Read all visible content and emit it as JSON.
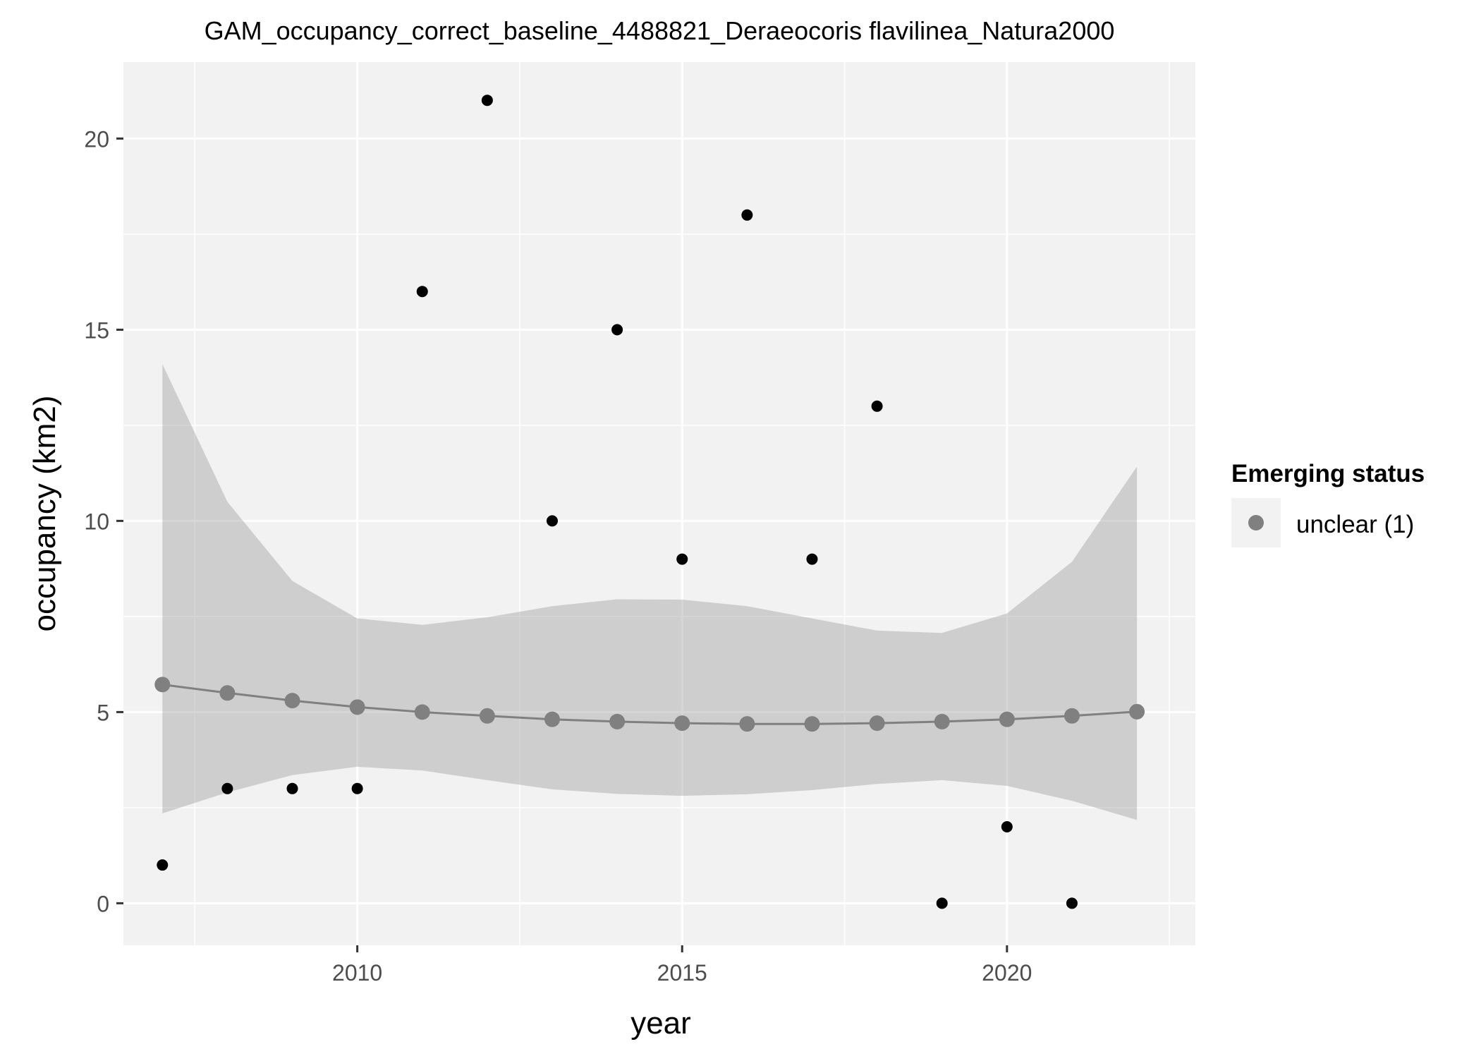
{
  "chart_data": {
    "type": "scatter",
    "title": "GAM_occupancy_correct_baseline_4488821_Deraeocoris flavilinea_Natura2000",
    "xlabel": "year",
    "ylabel": "occupancy (km2)",
    "xlim": [
      2006.4,
      2022.9
    ],
    "ylim": [
      -1.1,
      22.0
    ],
    "x_ticks": [
      2010,
      2015,
      2020
    ],
    "y_ticks": [
      0,
      5,
      10,
      15,
      20
    ],
    "grid": true,
    "legend": {
      "title": "Emerging status",
      "placement": "right",
      "items": [
        {
          "label": "unclear (1)",
          "color": "#808080"
        }
      ]
    },
    "observed": {
      "color": "#000000",
      "x": [
        2007,
        2008,
        2009,
        2010,
        2011,
        2012,
        2013,
        2014,
        2015,
        2016,
        2017,
        2018,
        2019,
        2020,
        2021
      ],
      "y": [
        1,
        3,
        3,
        3,
        16,
        21,
        10,
        15,
        9,
        18,
        9,
        13,
        0,
        2,
        0
      ]
    },
    "fitted": {
      "name": "unclear (1)",
      "color": "#808080",
      "x": [
        2007,
        2008,
        2009,
        2010,
        2011,
        2012,
        2013,
        2014,
        2015,
        2016,
        2017,
        2018,
        2019,
        2020,
        2021,
        2022
      ],
      "y": [
        5.72,
        5.5,
        5.3,
        5.13,
        5.0,
        4.9,
        4.81,
        4.75,
        4.71,
        4.69,
        4.69,
        4.71,
        4.75,
        4.81,
        4.9,
        5.01
      ],
      "lower": [
        2.35,
        2.9,
        3.35,
        3.57,
        3.47,
        3.22,
        2.98,
        2.86,
        2.81,
        2.85,
        2.96,
        3.12,
        3.22,
        3.07,
        2.68,
        2.18
      ],
      "upper": [
        14.1,
        10.5,
        8.43,
        7.45,
        7.28,
        7.48,
        7.77,
        7.95,
        7.94,
        7.77,
        7.45,
        7.13,
        7.07,
        7.58,
        8.93,
        11.42
      ],
      "band_color": "#999999"
    },
    "colors": {
      "panel_bg": "#f2f2f2",
      "grid": "#ffffff"
    }
  }
}
